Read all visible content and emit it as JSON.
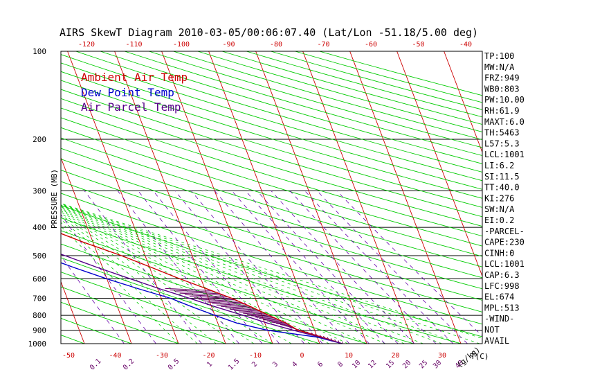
{
  "chart_data": {
    "type": "line",
    "title": "AIRS SkewT Diagram 2010-03-05/00:06:07.40 (Lat/Lon -51.18/5.00 deg)",
    "ylabel": "PRESSURE (MB)",
    "xlabel": "T(C)",
    "mixing_ratio_label": "(g/kg)",
    "top_temp_ticks": [
      "-120",
      "-110",
      "-100",
      "-90",
      "-80",
      "-70",
      "-60",
      "-50",
      "-40"
    ],
    "bottom_temp_ticks": [
      "-50",
      "-40",
      "-30",
      "-20",
      "-10",
      "0",
      "10",
      "20",
      "30"
    ],
    "mixing_ratio_ticks": [
      "0.1",
      "0.2",
      "0.5",
      "1",
      "1.5",
      "2",
      "3",
      "4",
      "6",
      "8",
      "10",
      "12",
      "15",
      "20",
      "25",
      "30",
      "40"
    ],
    "pressure_ticks": [
      "100",
      "200",
      "300",
      "400",
      "500",
      "600",
      "700",
      "800",
      "900",
      "1000"
    ],
    "pressure_levels": [
      100,
      200,
      300,
      400,
      500,
      600,
      700,
      800,
      900,
      1000
    ],
    "ylim": [
      1000,
      100
    ],
    "legend": [
      "Ambient Air Temp",
      "Dew Point Temp",
      "Air Parcel Temp"
    ],
    "legend_placement": "top-left",
    "series": [
      {
        "name": "Ambient Air Temp",
        "color": "#cc0000",
        "pressure": [
          1000,
          950,
          900,
          850,
          800,
          750,
          700,
          650,
          600,
          550,
          500,
          450,
          400,
          350,
          300,
          250,
          200,
          175,
          150,
          125,
          100
        ],
        "temp_c": [
          4.8,
          1.0,
          -3.5,
          -5.5,
          -8.5,
          -11.5,
          -15.0,
          -19.5,
          -24.5,
          -29.5,
          -35.0,
          -42.0,
          -49.0,
          -54.5,
          -58.0,
          -54.8,
          -51.5,
          -51.0,
          -50.3,
          -49.5,
          -48.5
        ]
      },
      {
        "name": "Dew Point Temp",
        "color": "#0000cc",
        "pressure": [
          1000,
          950,
          900,
          850,
          800,
          750,
          700,
          650,
          600,
          550,
          500,
          450,
          400,
          350,
          300,
          250,
          200,
          175,
          150,
          125,
          100
        ],
        "temp_c": [
          4.8,
          0.0,
          -10.0,
          -16.0,
          -20.0,
          -24.0,
          -28.0,
          -34.0,
          -40.0,
          -46.0,
          -52.0,
          -57.0,
          -62.0,
          -67.0,
          -72.0,
          -78.0,
          -85.0,
          -88.0,
          -88.0,
          -85.0,
          -80.0
        ]
      },
      {
        "name": "Air Parcel Temp",
        "color": "#550088",
        "pressure": [
          1000,
          950,
          900,
          850,
          800,
          750,
          700,
          650,
          600,
          550,
          500,
          450,
          400,
          350,
          300,
          250,
          200,
          175,
          150,
          125,
          100
        ],
        "temp_c": [
          4.8,
          0.5,
          -4.5,
          -9.5,
          -14.0,
          -19.0,
          -24.0,
          -29.5,
          -35.0,
          -41.0,
          -47.0,
          -54.0,
          -61.5,
          -70.0,
          -79.0,
          -89.0,
          -101.0,
          -108.0,
          -114.0,
          -88.0,
          -48.5
        ]
      }
    ],
    "parcel_area_pressures": [
      1000,
      950,
      900,
      850,
      800,
      750,
      700
    ],
    "indices": [
      "TP:100",
      "MW:N/A",
      "FRZ:949",
      "WB0:803",
      "PW:10.00",
      "RH:61.9",
      "MAXT:6.0",
      "TH:5463",
      "L57:5.3",
      "LCL:1001",
      "LI:6.2",
      "SI:11.5",
      "TT:40.0",
      "KI:276",
      "SW:N/A",
      "EI:0.2",
      "-PARCEL-",
      "CAPE:230",
      "CINH:0",
      "LCL:1001",
      "CAP:6.3",
      "LFC:998",
      "EL:674",
      "MPL:513",
      "-WIND-",
      "NOT",
      "AVAIL"
    ],
    "grid": true,
    "colors": {
      "isotherm": "#cc0000",
      "dry_adiabat": "#00cc00",
      "moist_adiabat": "#00cc00",
      "mixing_ratio": "#6600aa",
      "isobar": "#000000",
      "legend_ambient": "#cc0000",
      "legend_dewpoint": "#0000cc",
      "legend_parcel": "#550088",
      "top_scale": "#cc0000",
      "bottom_scale": "#cc0000",
      "mixing_scale": "#660066"
    }
  }
}
